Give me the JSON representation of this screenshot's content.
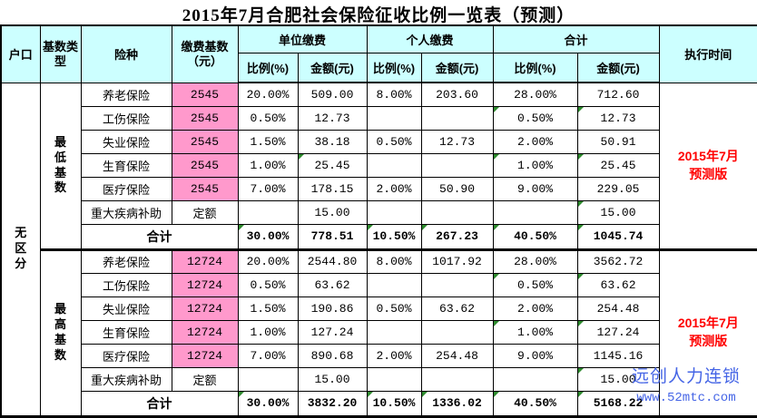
{
  "title": "2015年7月合肥社会保险征收比例一览表（预测）",
  "colors": {
    "header_bg": "#CCFFFF",
    "base_cell_bg": "#FF99CC",
    "alert_red": "#FF0000",
    "watermark_blue": "#4565E6",
    "marker_green": "#2E8B2E"
  },
  "header": {
    "hukou": "户口",
    "base_type": "基数类型",
    "insurance": "险种",
    "base": "缴费基数（元）",
    "groups": [
      {
        "label": "单位缴费"
      },
      {
        "label": "个人缴费"
      },
      {
        "label": "合计"
      }
    ],
    "rate": "比例(%)",
    "amount": "金额(元)",
    "exec_time": "执行时间"
  },
  "hukou_value": "无区分",
  "blocks": [
    {
      "base_type": "最低基数",
      "exec_time": [
        "2015年7月",
        "预测版"
      ],
      "rows": [
        {
          "name": "养老保险",
          "base": "2545",
          "base_pink": true,
          "unit_rate": "20.00%",
          "unit_amt": "509.00",
          "per_rate": "8.00%",
          "per_amt": "203.60",
          "tot_rate": "28.00%",
          "tot_amt": "712.60",
          "marks": []
        },
        {
          "name": "工伤保险",
          "base": "2545",
          "base_pink": true,
          "unit_rate": "0.50%",
          "unit_amt": "12.73",
          "per_rate": "",
          "per_amt": "",
          "tot_rate": "0.50%",
          "tot_amt": "12.73",
          "marks": [
            "tot_rate",
            "tot_amt"
          ]
        },
        {
          "name": "失业保险",
          "base": "2545",
          "base_pink": true,
          "unit_rate": "1.50%",
          "unit_amt": "38.18",
          "per_rate": "0.50%",
          "per_amt": "12.73",
          "tot_rate": "2.00%",
          "tot_amt": "50.91",
          "marks": []
        },
        {
          "name": "生育保险",
          "base": "2545",
          "base_pink": true,
          "unit_rate": "1.00%",
          "unit_amt": "25.45",
          "per_rate": "",
          "per_amt": "",
          "tot_rate": "1.00%",
          "tot_amt": "25.45",
          "marks": [
            "unit_amt",
            "tot_rate",
            "tot_amt"
          ]
        },
        {
          "name": "医疗保险",
          "base": "2545",
          "base_pink": true,
          "unit_rate": "7.00%",
          "unit_amt": "178.15",
          "per_rate": "2.00%",
          "per_amt": "50.90",
          "tot_rate": "9.00%",
          "tot_amt": "229.05",
          "marks": []
        },
        {
          "name": "重大疾病补助",
          "base": "定额",
          "base_pink": false,
          "unit_rate": "",
          "unit_amt": "15.00",
          "per_rate": "",
          "per_amt": "",
          "tot_rate": "",
          "tot_amt": "15.00",
          "marks": [
            "tot_amt"
          ]
        },
        {
          "name": "合计",
          "subtotal": true,
          "unit_rate": "30.00%",
          "unit_amt": "778.51",
          "per_rate": "10.50%",
          "per_amt": "267.23",
          "tot_rate": "40.50%",
          "tot_amt": "1045.74",
          "marks": [
            "unit_rate",
            "per_rate",
            "per_amt",
            "tot_rate",
            "tot_amt"
          ]
        }
      ]
    },
    {
      "base_type": "最高基数",
      "exec_time": [
        "2015年7月",
        "预测版"
      ],
      "rows": [
        {
          "name": "养老保险",
          "base": "12724",
          "base_pink": true,
          "unit_rate": "20.00%",
          "unit_amt": "2544.80",
          "per_rate": "8.00%",
          "per_amt": "1017.92",
          "tot_rate": "28.00%",
          "tot_amt": "3562.72",
          "marks": []
        },
        {
          "name": "工伤保险",
          "base": "12724",
          "base_pink": true,
          "unit_rate": "0.50%",
          "unit_amt": "63.62",
          "per_rate": "",
          "per_amt": "",
          "tot_rate": "0.50%",
          "tot_amt": "63.62",
          "marks": [
            "tot_rate",
            "tot_amt"
          ]
        },
        {
          "name": "失业保险",
          "base": "12724",
          "base_pink": true,
          "unit_rate": "1.50%",
          "unit_amt": "190.86",
          "per_rate": "0.50%",
          "per_amt": "63.62",
          "tot_rate": "2.00%",
          "tot_amt": "254.48",
          "marks": []
        },
        {
          "name": "生育保险",
          "base": "12724",
          "base_pink": true,
          "unit_rate": "1.00%",
          "unit_amt": "127.24",
          "per_rate": "",
          "per_amt": "",
          "tot_rate": "1.00%",
          "tot_amt": "127.24",
          "marks": [
            "tot_rate",
            "tot_amt"
          ]
        },
        {
          "name": "医疗保险",
          "base": "12724",
          "base_pink": true,
          "unit_rate": "7.00%",
          "unit_amt": "890.68",
          "per_rate": "2.00%",
          "per_amt": "254.48",
          "tot_rate": "9.00%",
          "tot_amt": "1145.16",
          "marks": []
        },
        {
          "name": "重大疾病补助",
          "base": "定额",
          "base_pink": false,
          "unit_rate": "",
          "unit_amt": "15.00",
          "per_rate": "",
          "per_amt": "",
          "tot_rate": "",
          "tot_amt": "15.00",
          "marks": [
            "tot_amt"
          ]
        },
        {
          "name": "合计",
          "subtotal": true,
          "unit_rate": "30.00%",
          "unit_amt": "3832.20",
          "per_rate": "10.50%",
          "per_amt": "1336.02",
          "tot_rate": "40.50%",
          "tot_amt": "5168.22",
          "marks": [
            "unit_rate",
            "per_rate",
            "per_amt",
            "tot_rate",
            "tot_amt"
          ]
        }
      ]
    }
  ],
  "watermark": {
    "line1": "远创人力连锁",
    "line2": "www.52mtc.com"
  }
}
